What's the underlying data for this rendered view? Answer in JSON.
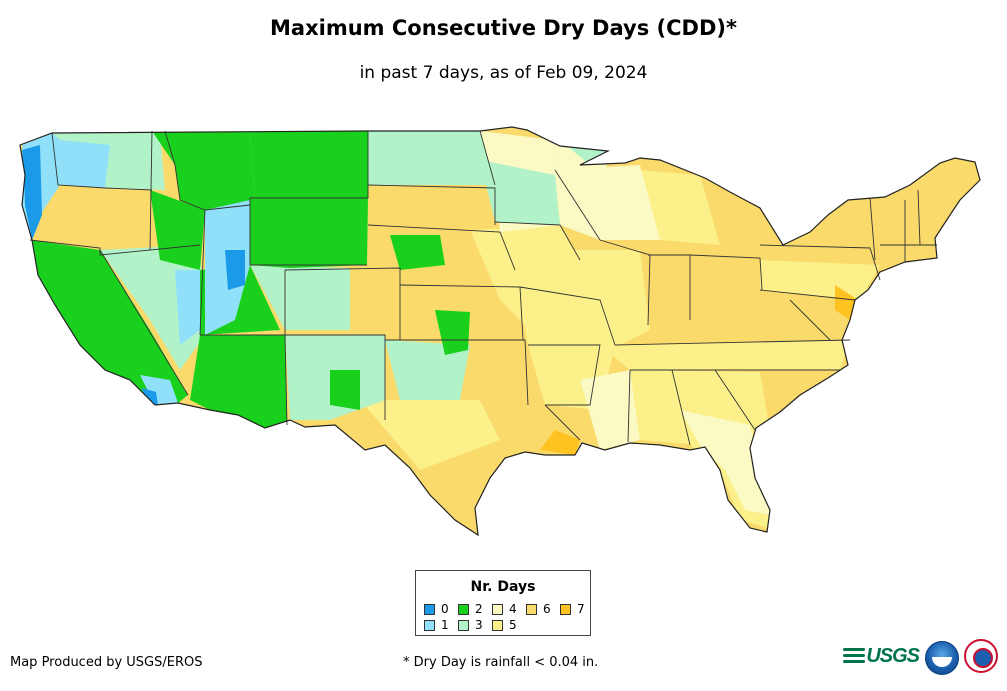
{
  "map": {
    "title": "Maximum Consecutive Dry Days (CDD)*",
    "subtitle": "in past 7 days, as of Feb 09, 2024",
    "extent": "Contiguous United States"
  },
  "legend": {
    "title": "Nr. Days",
    "items": [
      {
        "label": "0",
        "color": "#1a9ae8"
      },
      {
        "label": "1",
        "color": "#8fe0f8"
      },
      {
        "label": "2",
        "color": "#19d11c"
      },
      {
        "label": "3",
        "color": "#b2f2c9"
      },
      {
        "label": "4",
        "color": "#fbfac5"
      },
      {
        "label": "5",
        "color": "#fbf089"
      },
      {
        "label": "6",
        "color": "#f9da6b"
      },
      {
        "label": "7",
        "color": "#fec321"
      }
    ]
  },
  "footer": {
    "credit": "Map Produced by USGS/EROS",
    "footnote": "* Dry Day is rainfall < 0.04 in.",
    "logos": {
      "usgs": "USGS",
      "noaa": "noaa-logo",
      "nws": "nws-logo"
    }
  },
  "colors": {
    "background": "#ffffff",
    "state_border": "#333333"
  }
}
